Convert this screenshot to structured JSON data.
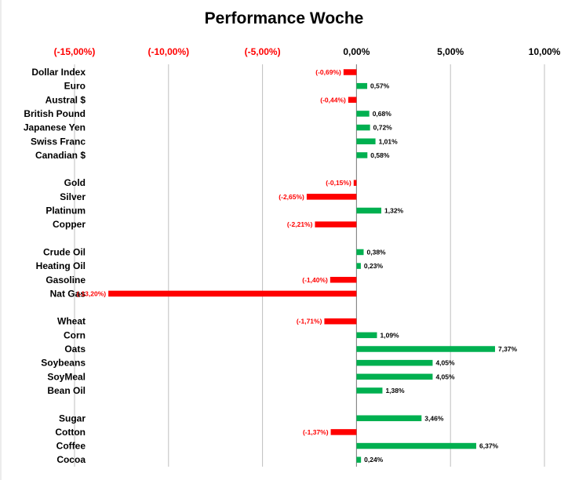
{
  "chart_data": {
    "type": "bar",
    "orientation": "horizontal",
    "title": "Performance Woche",
    "xlabel": "",
    "ylabel": "",
    "xlim": [
      -15,
      10
    ],
    "x_ticks": [
      -15,
      -10,
      -5,
      0,
      5,
      10
    ],
    "x_tick_labels": [
      "(-15,00%)",
      "(-10,00%)",
      "(-5,00%)",
      "0,00%",
      "5,00%",
      "10,00%"
    ],
    "grid": "vertical",
    "legend": "none",
    "colors": {
      "positive": "#00b050",
      "negative": "#ff0000",
      "grid": "#bfbfbf",
      "axis": "#808080"
    },
    "categories": [
      "Dollar Index",
      "Euro",
      "Austral $",
      "British Pound",
      "Japanese Yen",
      "Swiss Franc",
      "Canadian $",
      "",
      "Gold",
      "Silver",
      "Platinum",
      "Copper",
      "",
      "Crude Oil",
      "Heating Oil",
      "Gasoline",
      "Nat Gas",
      "",
      "Wheat",
      "Corn",
      "Oats",
      "Soybeans",
      "SoyMeal",
      "Bean Oil",
      "",
      "Sugar",
      "Cotton",
      "Coffee",
      "Cocoa"
    ],
    "values": [
      -0.69,
      0.57,
      -0.44,
      0.68,
      0.72,
      1.01,
      0.58,
      null,
      -0.15,
      -2.65,
      1.32,
      -2.21,
      null,
      0.38,
      0.23,
      -1.4,
      -13.2,
      null,
      -1.71,
      1.09,
      7.37,
      4.05,
      4.05,
      1.38,
      null,
      3.46,
      -1.37,
      6.37,
      0.24
    ],
    "value_labels": [
      "(-0,69%)",
      "0,57%",
      "(-0,44%)",
      "0,68%",
      "0,72%",
      "1,01%",
      "0,58%",
      "",
      "(-0,15%)",
      "(-2,65%)",
      "1,32%",
      "(-2,21%)",
      "",
      "0,38%",
      "0,23%",
      "(-1,40%)",
      "(-13,20%)",
      "",
      "(-1,71%)",
      "1,09%",
      "7,37%",
      "4,05%",
      "4,05%",
      "1,38%",
      "",
      "3,46%",
      "(-1,37%)",
      "6,37%",
      "0,24%"
    ]
  }
}
